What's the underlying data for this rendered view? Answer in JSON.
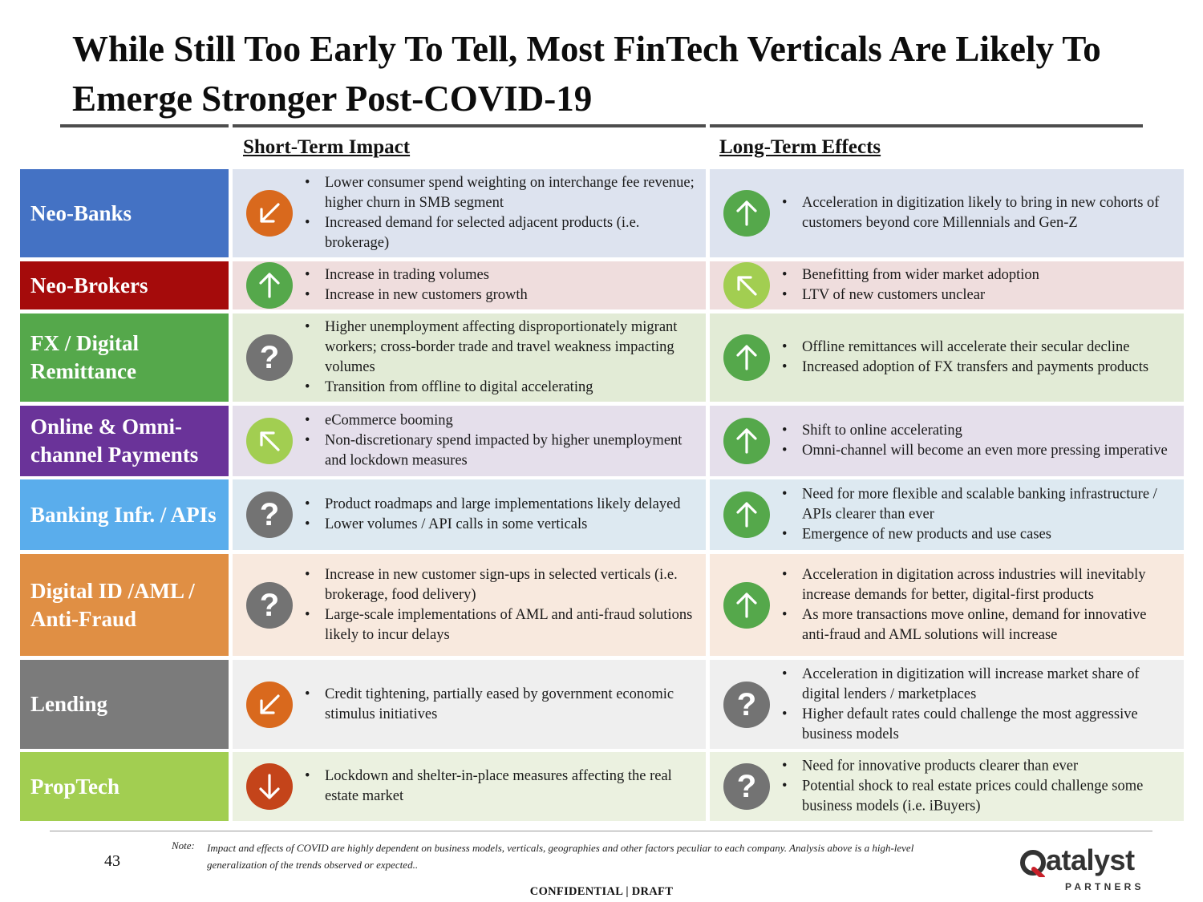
{
  "title": "While Still Too Early To Tell, Most FinTech Verticals Are Likely To Emerge Stronger Post-COVID-19",
  "headers": {
    "short_term": "Short-Term Impact",
    "long_term": "Long-Term Effects"
  },
  "rows": [
    {
      "label": "Neo-Banks",
      "label_color": "#4472c4",
      "cell_color": "#dde3ef",
      "short_icon": "arrow-down-left-icon",
      "short_icon_color": "#d9691d",
      "short": [
        "Lower consumer spend weighting on interchange fee revenue; higher churn in SMB segment",
        "Increased demand for selected adjacent products (i.e. brokerage)"
      ],
      "long_icon": "arrow-up-icon",
      "long_icon_color": "#55a84b",
      "long": [
        "Acceleration in digitization likely to bring in new cohorts of customers beyond core Millennials and Gen-Z"
      ]
    },
    {
      "label": "Neo-Brokers",
      "label_color": "#a50b0b",
      "cell_color": "#efdddd",
      "short_icon": "arrow-up-icon",
      "short_icon_color": "#55a84b",
      "short": [
        "Increase in trading volumes",
        "Increase in new customers growth"
      ],
      "long_icon": "arrow-up-left-icon",
      "long_icon_color": "#a2ce51",
      "long": [
        "Benefitting from wider market adoption",
        "LTV of new customers unclear"
      ]
    },
    {
      "label": "FX / Digital Remittance",
      "label_color": "#55a84b",
      "cell_color": "#e2ebd6",
      "short_icon": "question-icon",
      "short_icon_color": "#737373",
      "short": [
        "Higher unemployment affecting disproportionately migrant workers; cross-border trade and travel weakness impacting volumes",
        "Transition from offline to digital accelerating"
      ],
      "long_icon": "arrow-up-icon",
      "long_icon_color": "#55a84b",
      "long": [
        "Offline remittances will accelerate their secular decline",
        "Increased adoption of FX transfers and payments products"
      ]
    },
    {
      "label": "Online & Omni-channel Payments",
      "label_color": "#6a3399",
      "cell_color": "#e5dfeb",
      "short_icon": "arrow-up-left-icon",
      "short_icon_color": "#a2ce51",
      "short": [
        "eCommerce booming",
        "Non-discretionary spend impacted by higher unemployment and lockdown measures"
      ],
      "long_icon": "arrow-up-icon",
      "long_icon_color": "#55a84b",
      "long": [
        "Shift to online accelerating",
        "Omni-channel will become an even more pressing imperative"
      ]
    },
    {
      "label": "Banking Infr. / APIs",
      "label_color": "#5aadec",
      "cell_color": "#dde9f1",
      "short_icon": "question-icon",
      "short_icon_color": "#737373",
      "short": [
        "Product roadmaps and large implementations likely delayed",
        "Lower volumes / API calls in some verticals"
      ],
      "long_icon": "arrow-up-icon",
      "long_icon_color": "#55a84b",
      "long": [
        "Need for more flexible and scalable banking infrastructure / APIs clearer than ever",
        "Emergence of new products and use cases"
      ]
    },
    {
      "label": "Digital ID /AML / Anti-Fraud",
      "label_color": "#e08f44",
      "cell_color": "#f8e9de",
      "short_icon": "question-icon",
      "short_icon_color": "#737373",
      "short": [
        "Increase in new customer sign-ups in selected verticals (i.e. brokerage, food delivery)",
        "Large-scale implementations of AML and anti-fraud solutions likely to incur delays"
      ],
      "long_icon": "arrow-up-icon",
      "long_icon_color": "#55a84b",
      "long": [
        "Acceleration in digitation across industries will inevitably increase demands for better, digital-first products",
        "As more transactions move online, demand for innovative anti-fraud and AML solutions will increase"
      ]
    },
    {
      "label": "Lending",
      "label_color": "#7b7b7b",
      "cell_color": "#efefef",
      "short_icon": "arrow-down-left-icon",
      "short_icon_color": "#d9691d",
      "short": [
        "Credit tightening, partially eased by government economic stimulus initiatives"
      ],
      "long_icon": "question-icon",
      "long_icon_color": "#737373",
      "long": [
        "Acceleration in digitization will increase market share of digital lenders / marketplaces",
        "Higher default rates could challenge the most aggressive business models"
      ]
    },
    {
      "label": "PropTech",
      "label_color": "#a2ce51",
      "cell_color": "#ebf1e0",
      "short_icon": "arrow-down-icon",
      "short_icon_color": "#c4441a",
      "short": [
        "Lockdown and shelter-in-place measures affecting the real estate market"
      ],
      "long_icon": "question-icon",
      "long_icon_color": "#737373",
      "long": [
        "Need for innovative products clearer than ever",
        "Potential shock to real estate prices could challenge some business models (i.e. iBuyers)"
      ]
    }
  ],
  "footer": {
    "page_number": "43",
    "note_label": "Note:",
    "note": "Impact and effects of COVID are highly dependent on business models, verticals, geographies and other factors peculiar to each company. Analysis above is a high-level generalization of the trends observed or expected..",
    "confidential": "CONFIDENTIAL | DRAFT",
    "logo_word": "atalyst",
    "logo_sub": "PARTNERS",
    "logo_text": "Qatalyst PARTNERS"
  }
}
